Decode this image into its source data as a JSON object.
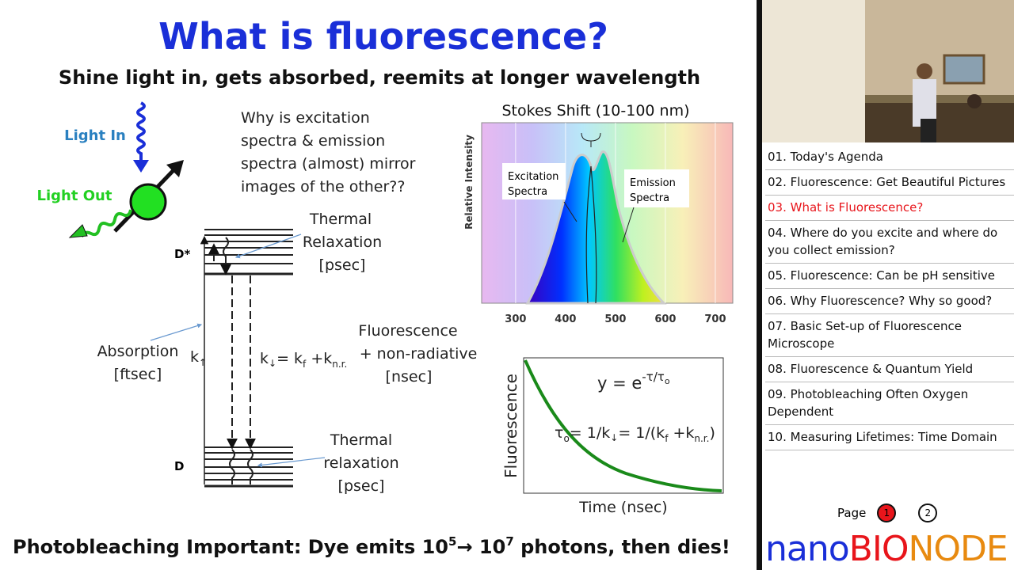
{
  "slide": {
    "title": "What is fluorescence?",
    "subtitle": "Shine light in, gets absorbed, reemits at longer wavelength",
    "light_in": "Light In",
    "light_out": "Light Out",
    "question": [
      "Why is excitation",
      "spectra & emission",
      "spectra (almost) mirror",
      "images of the other??"
    ],
    "jablonski": {
      "upper_state": "D*",
      "lower_state": "D",
      "thermal_top": [
        "Thermal",
        "Relaxation",
        "[psec]"
      ],
      "absorption": [
        "Absorption",
        "[ftsec]"
      ],
      "k_up": [
        "k",
        "↑"
      ],
      "rate_eq": [
        "k",
        "↓",
        "= k",
        "f",
        " +k",
        "n.r."
      ],
      "fluorescence": [
        "Fluorescence",
        "+ non-radiative",
        "[nsec]"
      ],
      "thermal_bottom": [
        "Thermal",
        "relaxation",
        "[psec]"
      ]
    },
    "spectra": {
      "title": "Stokes Shift (10-100 nm)",
      "ylabel": "Relative Intensity",
      "xlim": [
        232,
        735
      ],
      "xticks": [
        300,
        400,
        500,
        600,
        700
      ],
      "excitation": [
        "Excitation",
        "Spectra"
      ],
      "emission": [
        "Emission",
        "Spectra"
      ]
    },
    "decay": {
      "ylabel": "Fluorescence",
      "xlabel": "Time (nsec)",
      "equation": [
        "y = e",
        "-τ/τ",
        "o"
      ],
      "lifetime": [
        "τ",
        "o",
        "= 1/k",
        "↓",
        "= 1/(k",
        "f",
        " +k",
        "n.r.",
        ")"
      ]
    },
    "footer": [
      "Photobleaching Important: Dye emits 10",
      "5",
      "→ 10",
      "7",
      " photons, then dies!"
    ]
  },
  "sidebar": {
    "items": [
      "01. Today's Agenda",
      "02. Fluorescence: Get Beautiful Pictures",
      "03. What is Fluorescence?",
      "04. Where do you excite and where do you collect emission?",
      "05. Fluorescence: Can be pH sensitive",
      "06. Why Fluorescence? Why so good?",
      "07. Basic Set-up of Fluorescence Microscope",
      "08. Fluorescence & Quantum Yield",
      "09. Photobleaching Often Oxygen Dependent",
      "10. Measuring Lifetimes: Time Domain"
    ],
    "active_index": 2,
    "page_label": "Page",
    "pages": [
      "1",
      "2"
    ],
    "current_page": 0,
    "brand": [
      "nano",
      "BIO",
      "NODE"
    ]
  }
}
